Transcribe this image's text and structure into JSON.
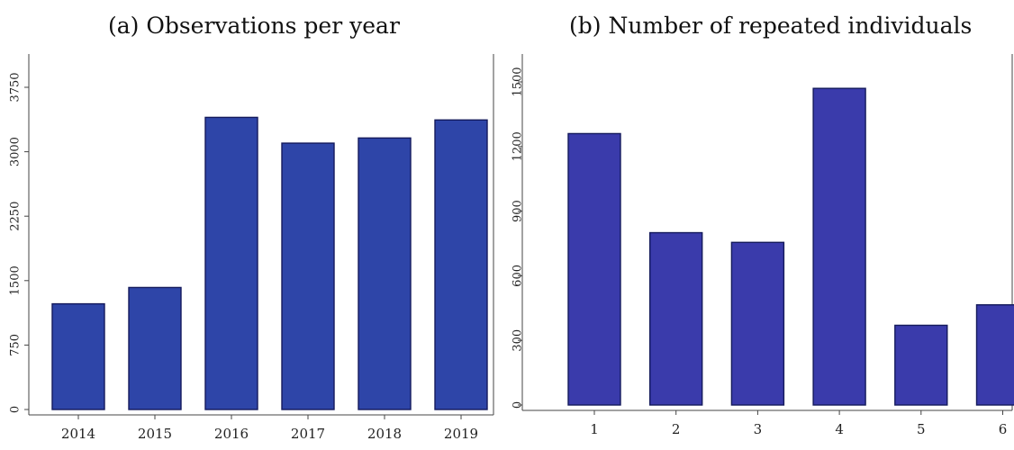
{
  "chart_data": [
    {
      "type": "bar",
      "title": "(a) Observations per year",
      "xlabel": "",
      "ylabel": "",
      "categories": [
        "2014",
        "2015",
        "2016",
        "2017",
        "2018",
        "2019"
      ],
      "values": [
        1230,
        1420,
        3400,
        3100,
        3160,
        3370
      ],
      "yticks": [
        0,
        750,
        1500,
        2250,
        3000,
        3750
      ],
      "ylim": [
        0,
        3750
      ],
      "grid": false,
      "bar_color": "#2e45a8"
    },
    {
      "type": "bar",
      "title": "(b) Number of repeated individuals",
      "xlabel": "",
      "ylabel": "",
      "categories": [
        "1",
        "2",
        "3",
        "4",
        "5",
        "6"
      ],
      "values": [
        1260,
        800,
        755,
        1470,
        370,
        465
      ],
      "yticks": [
        0,
        300,
        600,
        900,
        1200,
        1500
      ],
      "ylim": [
        0,
        1500
      ],
      "grid": false,
      "bar_color": "#3a3bab"
    }
  ]
}
